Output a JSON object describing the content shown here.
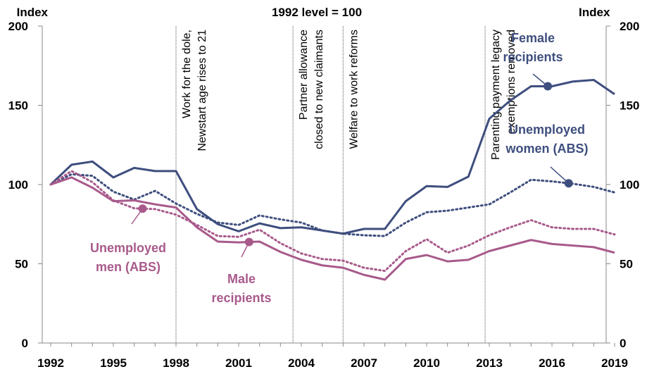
{
  "chart_data": {
    "type": "line",
    "title": "1992 level = 100",
    "ylabel_left": "Index",
    "ylabel_right": "Index",
    "ylim": [
      0,
      200
    ],
    "yticks": [
      0,
      50,
      100,
      150,
      200
    ],
    "xlim": [
      1992,
      2019
    ],
    "xticks": [
      1992,
      1995,
      1998,
      2001,
      2004,
      2007,
      2010,
      2013,
      2016,
      2019
    ],
    "grid": false,
    "series": [
      {
        "name": "Female recipients",
        "label_lines": [
          "Female",
          "recipients"
        ],
        "style": "solid",
        "color": "#3e4e7e",
        "marker_x": 2015.8,
        "x": [
          1992,
          1993,
          1994,
          1995,
          1996,
          1997,
          1998,
          1999,
          2000,
          2001,
          2002,
          2003,
          2004,
          2005,
          2006,
          2007,
          2008,
          2009,
          2010,
          2011,
          2012,
          2013,
          2014,
          2015,
          2016,
          2017,
          2018,
          2019
        ],
        "values": [
          100,
          112.5,
          114.5,
          104.5,
          110.5,
          108.5,
          108.5,
          84.5,
          75,
          70.5,
          75.5,
          72.5,
          73,
          71,
          69,
          72,
          72,
          89.5,
          99,
          98.5,
          105,
          141.5,
          153,
          162,
          162,
          165,
          166,
          157
        ]
      },
      {
        "name": "Unemployed women (ABS)",
        "label_lines": [
          "Unemployed",
          "women (ABS)"
        ],
        "style": "dotted",
        "color": "#3e4e7e",
        "marker_x": 2016.8,
        "x": [
          1992,
          1993,
          1994,
          1995,
          1996,
          1997,
          1998,
          1999,
          2000,
          2001,
          2002,
          2003,
          2004,
          2005,
          2006,
          2007,
          2008,
          2009,
          2010,
          2011,
          2012,
          2013,
          2014,
          2015,
          2016,
          2017,
          2018,
          2019
        ],
        "values": [
          100,
          106.5,
          105.5,
          95.5,
          90.5,
          96,
          88,
          81.5,
          76,
          74.5,
          80.5,
          78,
          76,
          71,
          69,
          68,
          67.5,
          76,
          82.5,
          83.5,
          85.5,
          87.5,
          95,
          103,
          102,
          100.5,
          98.5,
          95
        ]
      },
      {
        "name": "Male recipients",
        "label_lines": [
          "Male",
          "recipients"
        ],
        "style": "solid",
        "color": "#a85a8b",
        "marker_x": 2001.5,
        "x": [
          1992,
          1993,
          1994,
          1995,
          1996,
          1997,
          1998,
          1999,
          2000,
          2001,
          2002,
          2003,
          2004,
          2005,
          2006,
          2007,
          2008,
          2009,
          2010,
          2011,
          2012,
          2013,
          2014,
          2015,
          2016,
          2017,
          2018,
          2019
        ],
        "values": [
          100,
          104.5,
          98,
          89.5,
          90,
          87.5,
          85.5,
          73,
          64,
          63.5,
          64,
          57.5,
          52.5,
          49,
          47.5,
          43,
          40,
          53,
          55.5,
          51.5,
          52.5,
          58,
          61.5,
          65,
          62.5,
          61.5,
          60.5,
          57
        ]
      },
      {
        "name": "Unemployed men (ABS)",
        "label_lines": [
          "Unemployed",
          "men (ABS)"
        ],
        "style": "dotted",
        "color": "#a85a8b",
        "marker_x": 1996.4,
        "x": [
          1992,
          1993,
          1994,
          1995,
          1996,
          1997,
          1998,
          1999,
          2000,
          2001,
          2002,
          2003,
          2004,
          2005,
          2006,
          2007,
          2008,
          2009,
          2010,
          2011,
          2012,
          2013,
          2014,
          2015,
          2016,
          2017,
          2018,
          2019
        ],
        "values": [
          100,
          108.5,
          101.5,
          90,
          85,
          84.5,
          81,
          74.5,
          67.5,
          67,
          71.5,
          63,
          56.5,
          53,
          52,
          47.5,
          45.5,
          58,
          65.5,
          57,
          61.5,
          68,
          73,
          77.5,
          73,
          72,
          72,
          68.5
        ]
      }
    ],
    "annotations": [
      {
        "x": 1998.0,
        "lines": [
          "Work for the dole,",
          "Newstart age  rises to 21"
        ]
      },
      {
        "x": 2003.6,
        "lines": [
          "Partner allowance",
          "closed to new claimants"
        ]
      },
      {
        "x": 2006.0,
        "lines": [
          "Welfare to work reforms"
        ]
      },
      {
        "x": 2012.8,
        "lines": [
          "Parenting payment legacy",
          "exemptions removed"
        ]
      }
    ]
  }
}
